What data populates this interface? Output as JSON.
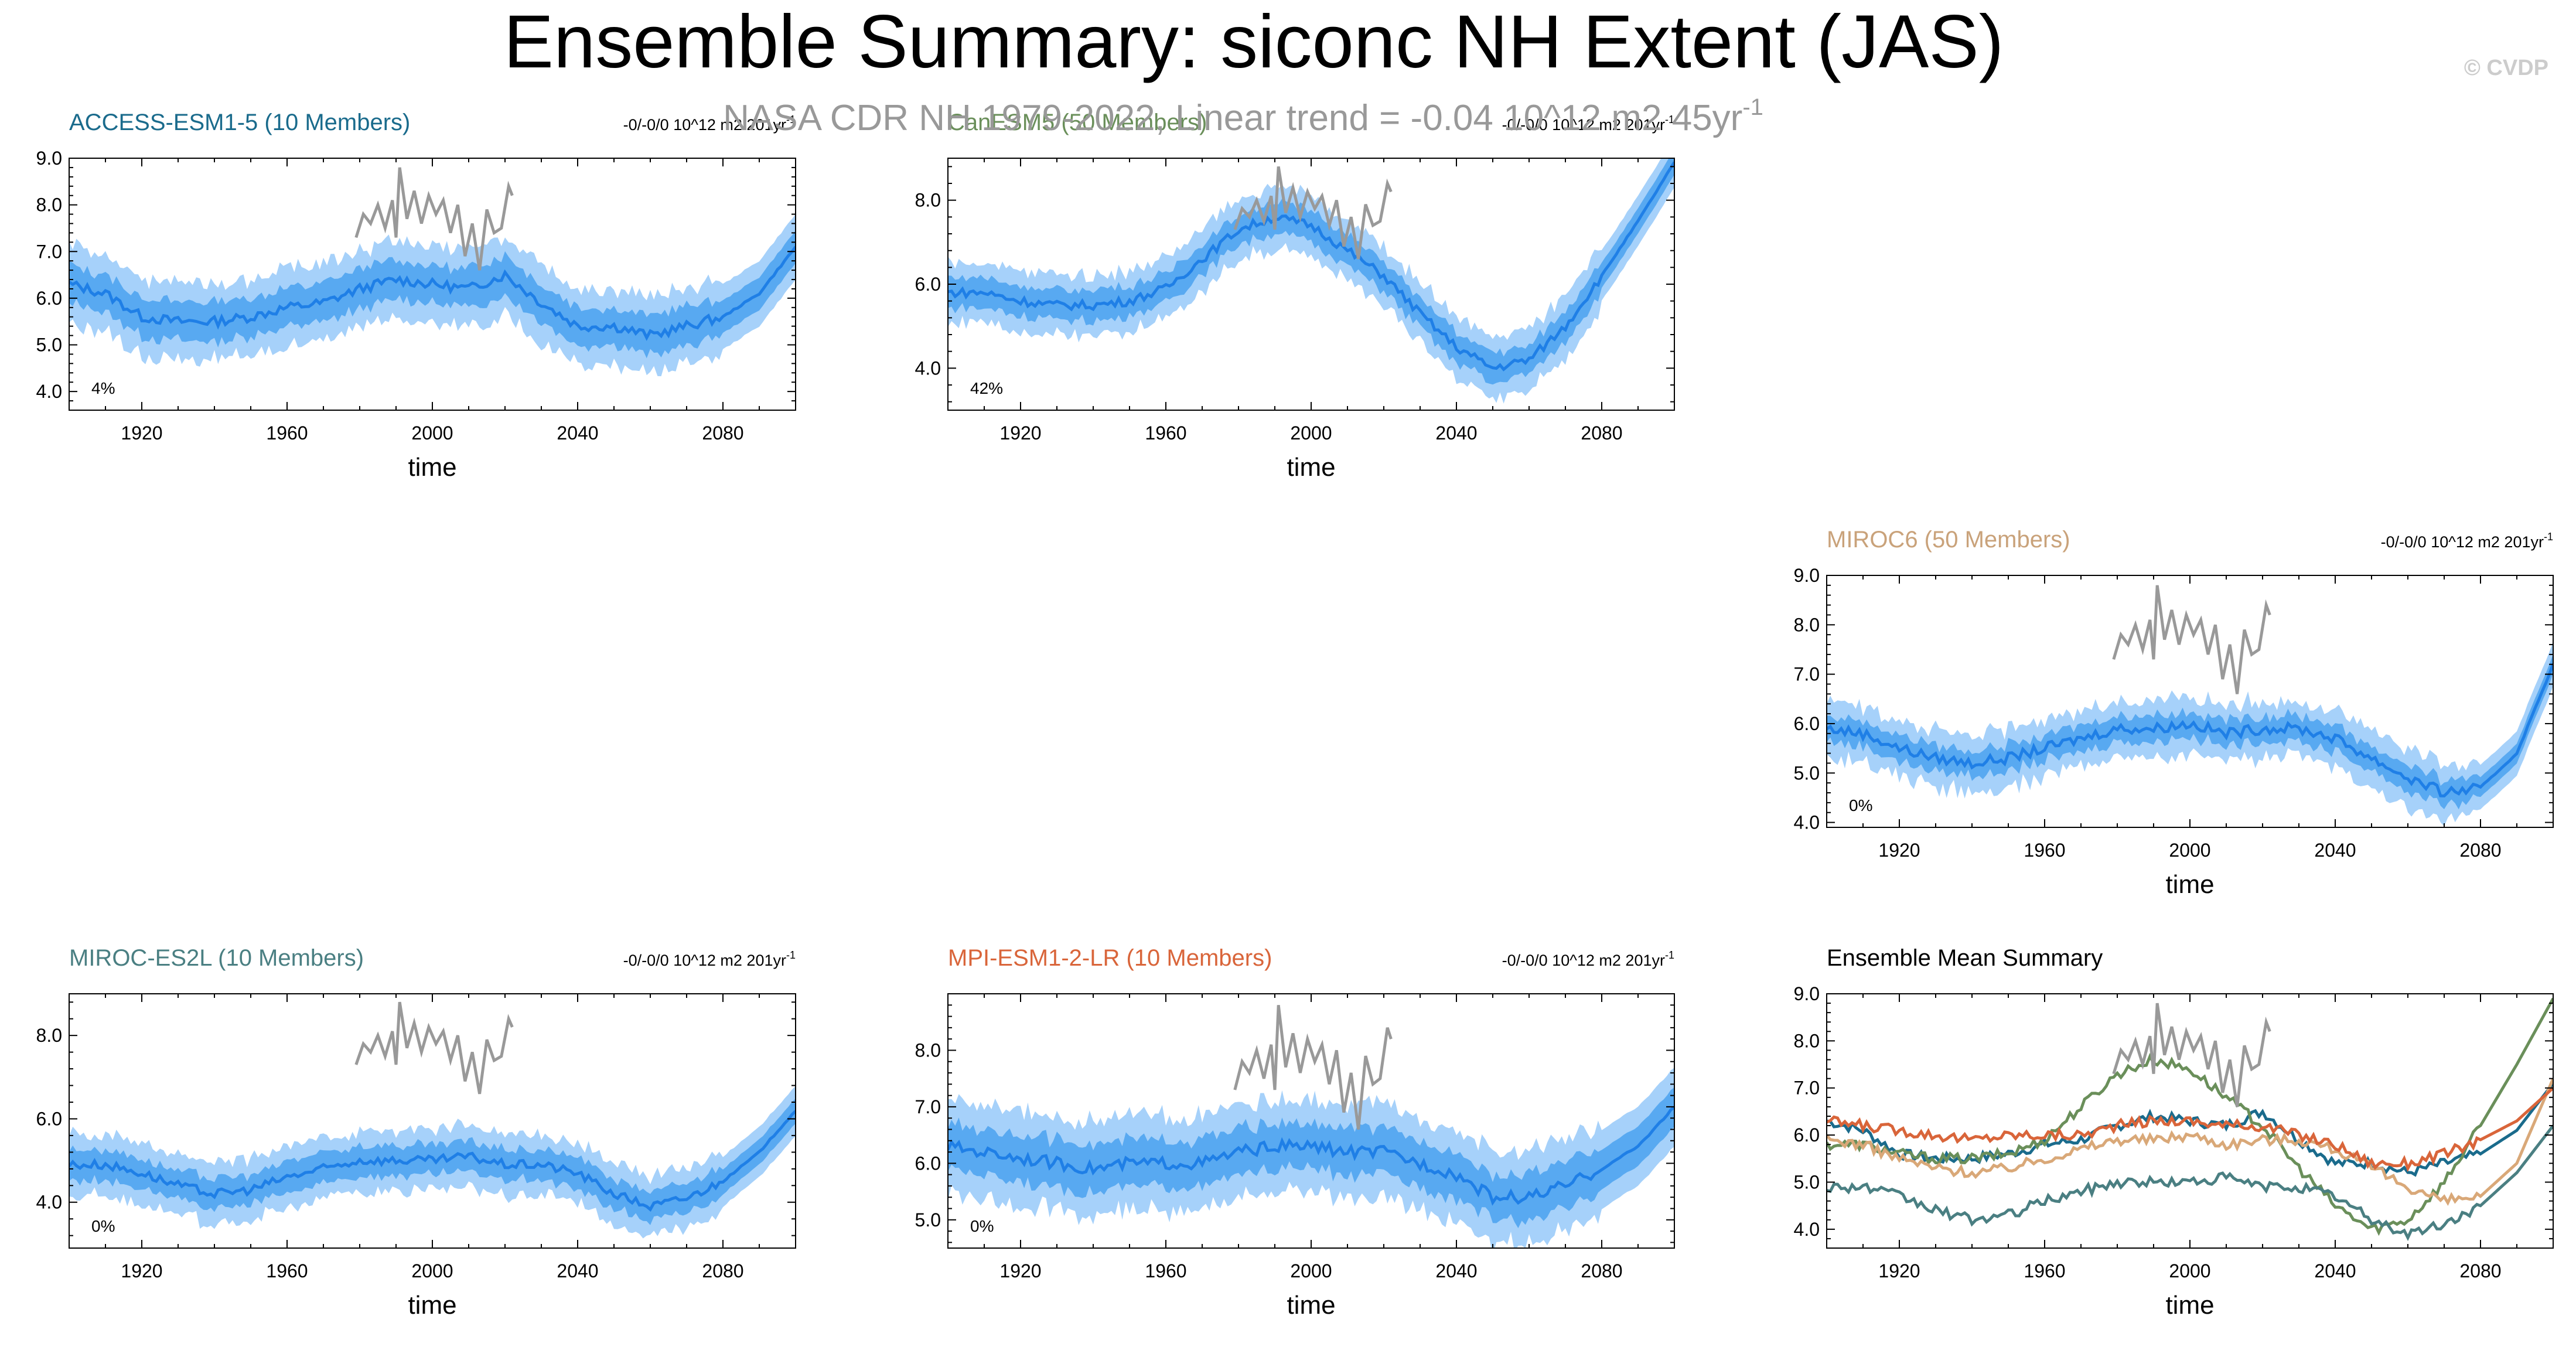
{
  "figure": {
    "title": "Ensemble Summary: siconc NH Extent (JAS)",
    "watermark": "© CVDP",
    "observation_note": "NASA CDR NH 1979-2022, Linear trend = -0.04 10^12 m2 45yr",
    "observation_note_sup": "-1",
    "colors": {
      "band_outer": "#a6d1fa",
      "band_inner": "#4aa2ee",
      "ens_mean": "#1f7fe6",
      "obs": "#999999",
      "title": "#000000",
      "obs_note": "#999999"
    }
  },
  "chart_data": [
    {
      "id": "access",
      "type": "line",
      "title": "ACCESS-ESM1-5 (10 Members)",
      "title_color": "#1a6b8c",
      "trend_label": "-0/-0/0 10^12 m2 201yr",
      "trend_sup": "-1",
      "percent_label": "4%",
      "xlabel": "time",
      "xlim": [
        1900,
        2100
      ],
      "ylim": [
        3.6,
        9.0
      ],
      "x_ticks": [
        1920,
        1960,
        2000,
        2040,
        2080
      ],
      "y_ticks": [
        4.0,
        5.0,
        6.0,
        7.0,
        8.0,
        9.0
      ],
      "y_tick_labels": [
        "4.0",
        "5.0",
        "6.0",
        "7.0",
        "8.0",
        "9.0"
      ],
      "ensemble_mean": {
        "x": [
          1900,
          1910,
          1920,
          1930,
          1940,
          1950,
          1960,
          1970,
          1980,
          1990,
          2000,
          2010,
          2020,
          2030,
          2040,
          2050,
          2060,
          2070,
          2080,
          2090,
          2100
        ],
        "y": [
          6.3,
          6.1,
          5.6,
          5.5,
          5.5,
          5.6,
          5.8,
          5.9,
          6.2,
          6.4,
          6.3,
          6.2,
          6.5,
          5.9,
          5.4,
          5.4,
          5.2,
          5.4,
          5.6,
          6.1,
          7.1
        ],
        "spread_inner": 0.35,
        "spread_outer": 0.7
      },
      "observations": {
        "x": [
          1979,
          1981,
          1983,
          1985,
          1987,
          1989,
          1990,
          1991,
          1993,
          1995,
          1997,
          1999,
          2001,
          2003,
          2005,
          2007,
          2009,
          2011,
          2013,
          2015,
          2017,
          2019,
          2021,
          2022
        ],
        "y": [
          7.3,
          7.8,
          7.6,
          8.0,
          7.5,
          8.1,
          7.3,
          8.8,
          7.7,
          8.3,
          7.6,
          8.2,
          7.8,
          8.1,
          7.4,
          8.0,
          6.9,
          7.6,
          6.6,
          7.9,
          7.4,
          7.5,
          8.4,
          8.2
        ]
      }
    },
    {
      "id": "cesm",
      "type": "line",
      "title": "CanESM5 (50 Members)",
      "title_color": "#6a8f5a",
      "trend_label": "-0/-0/0 10^12 m2 201yr",
      "trend_sup": "-1",
      "percent_label": "42%",
      "xlabel": "time",
      "xlim": [
        1900,
        2100
      ],
      "ylim": [
        3.0,
        9.0
      ],
      "x_ticks": [
        1920,
        1960,
        2000,
        2040,
        2080
      ],
      "y_ticks": [
        4.0,
        6.0,
        8.0
      ],
      "y_tick_labels": [
        "4.0",
        "6.0",
        "8.0"
      ],
      "ensemble_mean": {
        "x": [
          1900,
          1910,
          1920,
          1930,
          1940,
          1950,
          1960,
          1970,
          1980,
          1990,
          2000,
          2010,
          2020,
          2030,
          2040,
          2050,
          2060,
          2070,
          2080,
          2090,
          2100
        ],
        "y": [
          5.8,
          5.8,
          5.6,
          5.5,
          5.5,
          5.6,
          5.9,
          6.6,
          7.3,
          7.6,
          7.4,
          6.8,
          6.2,
          5.3,
          4.5,
          4.0,
          4.2,
          5.0,
          6.2,
          7.5,
          8.9
        ],
        "spread_inner": 0.3,
        "spread_outer": 0.6
      },
      "observations": {
        "x": [
          1979,
          1981,
          1983,
          1985,
          1987,
          1989,
          1990,
          1991,
          1993,
          1995,
          1997,
          1999,
          2001,
          2003,
          2005,
          2007,
          2009,
          2011,
          2013,
          2015,
          2017,
          2019,
          2021,
          2022
        ],
        "y": [
          7.3,
          7.8,
          7.6,
          8.0,
          7.5,
          8.1,
          7.3,
          8.8,
          7.7,
          8.3,
          7.6,
          8.2,
          7.8,
          8.1,
          7.4,
          8.0,
          6.9,
          7.6,
          6.6,
          7.9,
          7.4,
          7.5,
          8.4,
          8.2
        ]
      }
    },
    {
      "id": "miroc6",
      "type": "line",
      "title": "MIROC6 (50 Members)",
      "title_color": "#c9a27a",
      "trend_label": "-0/-0/0 10^12 m2 201yr",
      "trend_sup": "-1",
      "percent_label": "0%",
      "xlabel": "time",
      "xlim": [
        1900,
        2100
      ],
      "ylim": [
        3.9,
        9.0
      ],
      "x_ticks": [
        1920,
        1960,
        2000,
        2040,
        2080
      ],
      "y_ticks": [
        4.0,
        5.0,
        6.0,
        7.0,
        8.0,
        9.0
      ],
      "y_tick_labels": [
        "4.0",
        "5.0",
        "6.0",
        "7.0",
        "8.0",
        "9.0"
      ],
      "ensemble_mean": {
        "x": [
          1900,
          1910,
          1920,
          1930,
          1940,
          1950,
          1960,
          1970,
          1980,
          1990,
          2000,
          2010,
          2020,
          2030,
          2040,
          2050,
          2060,
          2070,
          2080,
          2090,
          2100
        ],
        "y": [
          5.9,
          5.8,
          5.5,
          5.3,
          5.2,
          5.3,
          5.5,
          5.7,
          5.9,
          5.9,
          6.0,
          5.8,
          5.9,
          5.9,
          5.7,
          5.3,
          4.9,
          4.6,
          4.7,
          5.4,
          7.2
        ],
        "spread_inner": 0.2,
        "spread_outer": 0.45
      },
      "observations": {
        "x": [
          1979,
          1981,
          1983,
          1985,
          1987,
          1989,
          1990,
          1991,
          1993,
          1995,
          1997,
          1999,
          2001,
          2003,
          2005,
          2007,
          2009,
          2011,
          2013,
          2015,
          2017,
          2019,
          2021,
          2022
        ],
        "y": [
          7.3,
          7.8,
          7.6,
          8.0,
          7.5,
          8.1,
          7.3,
          8.8,
          7.7,
          8.3,
          7.6,
          8.2,
          7.8,
          8.1,
          7.4,
          8.0,
          6.9,
          7.6,
          6.6,
          7.9,
          7.4,
          7.5,
          8.4,
          8.2
        ]
      }
    },
    {
      "id": "mirocesl",
      "type": "line",
      "title": "MIROC-ES2L (10 Members)",
      "title_color": "#4a7f82",
      "trend_label": "-0/-0/0 10^12 m2 201yr",
      "trend_sup": "-1",
      "percent_label": "0%",
      "xlabel": "time",
      "xlim": [
        1900,
        2100
      ],
      "ylim": [
        2.9,
        9.0
      ],
      "x_ticks": [
        1920,
        1960,
        2000,
        2040,
        2080
      ],
      "y_ticks": [
        4.0,
        6.0,
        8.0
      ],
      "y_tick_labels": [
        "4.0",
        "6.0",
        "8.0"
      ],
      "ensemble_mean": {
        "x": [
          1900,
          1910,
          1920,
          1930,
          1940,
          1950,
          1960,
          1970,
          1980,
          1990,
          2000,
          2010,
          2020,
          2030,
          2040,
          2050,
          2060,
          2070,
          2080,
          2090,
          2100
        ],
        "y": [
          4.9,
          4.9,
          4.7,
          4.4,
          4.2,
          4.3,
          4.6,
          4.8,
          5.0,
          5.0,
          5.0,
          5.1,
          4.9,
          4.9,
          4.7,
          4.2,
          3.9,
          4.1,
          4.5,
          5.2,
          6.2
        ],
        "spread_inner": 0.3,
        "spread_outer": 0.6
      },
      "observations": {
        "x": [
          1979,
          1981,
          1983,
          1985,
          1987,
          1989,
          1990,
          1991,
          1993,
          1995,
          1997,
          1999,
          2001,
          2003,
          2005,
          2007,
          2009,
          2011,
          2013,
          2015,
          2017,
          2019,
          2021,
          2022
        ],
        "y": [
          7.3,
          7.8,
          7.6,
          8.0,
          7.5,
          8.1,
          7.3,
          8.8,
          7.7,
          8.3,
          7.6,
          8.2,
          7.8,
          8.1,
          7.4,
          8.0,
          6.9,
          7.6,
          6.6,
          7.9,
          7.4,
          7.5,
          8.4,
          8.2
        ]
      }
    },
    {
      "id": "mpi",
      "type": "line",
      "title": "MPI-ESM1-2-LR (10 Members)",
      "title_color": "#d9653a",
      "trend_label": "-0/-0/0 10^12 m2 201yr",
      "trend_sup": "-1",
      "percent_label": "0%",
      "xlabel": "time",
      "xlim": [
        1900,
        2100
      ],
      "ylim": [
        4.5,
        9.0
      ],
      "x_ticks": [
        1920,
        1960,
        2000,
        2040,
        2080
      ],
      "y_ticks": [
        5.0,
        6.0,
        7.0,
        8.0
      ],
      "y_tick_labels": [
        "5.0",
        "6.0",
        "7.0",
        "8.0"
      ],
      "ensemble_mean": {
        "x": [
          1900,
          1910,
          1920,
          1930,
          1940,
          1950,
          1960,
          1970,
          1980,
          1990,
          2000,
          2010,
          2020,
          2030,
          2040,
          2050,
          2060,
          2070,
          2080,
          2090,
          2100
        ],
        "y": [
          6.3,
          6.2,
          6.1,
          6.0,
          5.9,
          6.0,
          6.0,
          6.0,
          6.2,
          6.3,
          6.3,
          6.2,
          6.2,
          6.0,
          5.8,
          5.4,
          5.4,
          5.6,
          5.9,
          6.3,
          7.0
        ],
        "spread_inner": 0.35,
        "spread_outer": 0.7
      },
      "observations": {
        "x": [
          1979,
          1981,
          1983,
          1985,
          1987,
          1989,
          1990,
          1991,
          1993,
          1995,
          1997,
          1999,
          2001,
          2003,
          2005,
          2007,
          2009,
          2011,
          2013,
          2015,
          2017,
          2019,
          2021,
          2022
        ],
        "y": [
          7.3,
          7.8,
          7.6,
          8.0,
          7.5,
          8.1,
          7.3,
          8.8,
          7.7,
          8.3,
          7.6,
          8.2,
          7.8,
          8.1,
          7.4,
          8.0,
          6.9,
          7.6,
          6.6,
          7.9,
          7.4,
          7.5,
          8.4,
          8.2
        ]
      }
    },
    {
      "id": "summary",
      "type": "line",
      "title": "Ensemble Mean Summary",
      "title_color": "#000000",
      "xlabel": "time",
      "xlim": [
        1900,
        2100
      ],
      "ylim": [
        3.6,
        9.0
      ],
      "x_ticks": [
        1920,
        1960,
        2000,
        2040,
        2080
      ],
      "y_ticks": [
        4.0,
        5.0,
        6.0,
        7.0,
        8.0,
        9.0
      ],
      "y_tick_labels": [
        "4.0",
        "5.0",
        "6.0",
        "7.0",
        "8.0",
        "9.0"
      ],
      "series": [
        {
          "name": "ACCESS-ESM1-5",
          "color": "#1a6b8c",
          "source": "access"
        },
        {
          "name": "CanESM5",
          "color": "#6a8f5a",
          "source": "cesm"
        },
        {
          "name": "MIROC6",
          "color": "#d9a878",
          "source": "miroc6"
        },
        {
          "name": "MIROC-ES2L",
          "color": "#4a7f82",
          "source": "mirocesl"
        },
        {
          "name": "MPI-ESM1-2-LR",
          "color": "#d9653a",
          "source": "mpi"
        }
      ],
      "observations": {
        "x": [
          1979,
          1981,
          1983,
          1985,
          1987,
          1989,
          1990,
          1991,
          1993,
          1995,
          1997,
          1999,
          2001,
          2003,
          2005,
          2007,
          2009,
          2011,
          2013,
          2015,
          2017,
          2019,
          2021,
          2022
        ],
        "y": [
          7.3,
          7.8,
          7.6,
          8.0,
          7.5,
          8.1,
          7.3,
          8.8,
          7.7,
          8.3,
          7.6,
          8.2,
          7.8,
          8.1,
          7.4,
          8.0,
          6.9,
          7.6,
          6.6,
          7.9,
          7.4,
          7.5,
          8.4,
          8.2
        ]
      }
    }
  ]
}
